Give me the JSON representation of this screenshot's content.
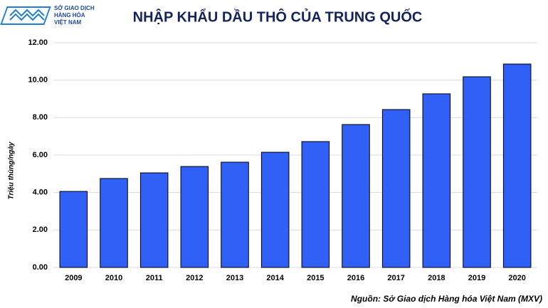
{
  "chart_data": {
    "type": "bar",
    "title": "NHẬP KHẨU DẦU THÔ CỦA TRUNG QUỐC",
    "logo": [
      "SỞ GIAO DỊCH",
      "HÀNG HÓA",
      "VIỆT NAM"
    ],
    "y_label": "Triệu thùng/ngày",
    "source": "Nguồn: Sở Giao dịch Hàng hóa Việt Nam (MXV)",
    "categories": [
      "2009",
      "2010",
      "2011",
      "2012",
      "2013",
      "2014",
      "2015",
      "2016",
      "2017",
      "2018",
      "2019",
      "2020"
    ],
    "values": [
      4.06,
      4.75,
      5.05,
      5.39,
      5.62,
      6.15,
      6.72,
      7.63,
      8.43,
      9.27,
      10.18,
      10.86
    ],
    "color": "#3060f5",
    "ylim": [
      0,
      12
    ],
    "yticks": [
      {
        "value": 0,
        "label": "0.00"
      },
      {
        "value": 2,
        "label": "2.00"
      },
      {
        "value": 4,
        "label": "4.00"
      },
      {
        "value": 6,
        "label": "6.00"
      },
      {
        "value": 8,
        "label": "8.00"
      },
      {
        "value": 10,
        "label": "10.00"
      },
      {
        "value": 12,
        "label": "12.00"
      }
    ],
    "grid": true
  }
}
